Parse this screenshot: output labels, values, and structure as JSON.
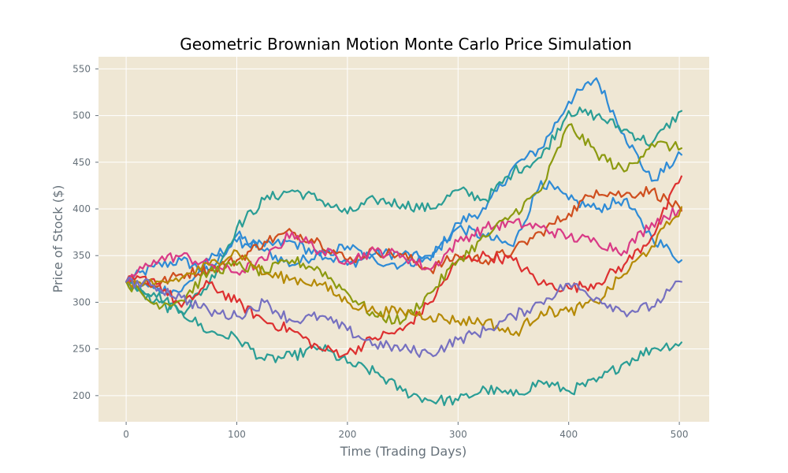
{
  "chart_data": {
    "type": "line",
    "title": "Geometric Brownian Motion Monte Carlo Price Simulation",
    "xlabel": "Time (Trading Days)",
    "ylabel": "Price of Stock ($)",
    "xlim": [
      -25,
      527
    ],
    "ylim": [
      172,
      563
    ],
    "x_ticks": [
      0,
      100,
      200,
      300,
      400,
      500
    ],
    "y_ticks": [
      200,
      250,
      300,
      350,
      400,
      450,
      500,
      550
    ],
    "x_tick_labels": [
      "0",
      "100",
      "200",
      "300",
      "400",
      "500"
    ],
    "y_tick_labels": [
      "200",
      "250",
      "300",
      "350",
      "400",
      "450",
      "500",
      "550"
    ],
    "grid": true,
    "plot_background": "#efe7d4",
    "x": [
      0,
      25,
      50,
      75,
      100,
      125,
      150,
      175,
      200,
      225,
      250,
      275,
      300,
      325,
      350,
      375,
      400,
      425,
      450,
      475,
      502
    ],
    "series": [
      {
        "color": "#2e8bd6",
        "values": [
          322,
          338,
          345,
          332,
          372,
          355,
          340,
          353,
          340,
          352,
          352,
          345,
          385,
          400,
          445,
          465,
          515,
          540,
          480,
          430,
          458
        ]
      },
      {
        "color": "#2e8bd6",
        "values": [
          322,
          315,
          312,
          345,
          365,
          360,
          365,
          350,
          360,
          345,
          340,
          350,
          380,
          370,
          360,
          430,
          410,
          400,
          410,
          370,
          345
        ]
      },
      {
        "color": "#2a9d95",
        "values": [
          322,
          310,
          290,
          320,
          380,
          410,
          420,
          410,
          395,
          410,
          405,
          400,
          420,
          410,
          440,
          455,
          505,
          500,
          485,
          470,
          505
        ]
      },
      {
        "color": "#2a9d95",
        "values": [
          322,
          300,
          290,
          268,
          262,
          238,
          242,
          252,
          235,
          225,
          205,
          195,
          195,
          207,
          200,
          215,
          205,
          215,
          235,
          250,
          257
        ]
      },
      {
        "color": "#cf4e1e",
        "values": [
          322,
          318,
          330,
          335,
          345,
          365,
          375,
          365,
          345,
          355,
          350,
          335,
          350,
          345,
          355,
          375,
          395,
          420,
          415,
          420,
          398
        ]
      },
      {
        "color": "#dd3030",
        "values": [
          322,
          325,
          295,
          320,
          300,
          280,
          270,
          250,
          245,
          262,
          270,
          300,
          345,
          350,
          345,
          320,
          315,
          320,
          340,
          370,
          435
        ]
      },
      {
        "color": "#d93a86",
        "values": [
          322,
          345,
          350,
          340,
          332,
          345,
          375,
          355,
          345,
          355,
          350,
          335,
          365,
          380,
          385,
          380,
          370,
          365,
          355,
          385,
          400
        ]
      },
      {
        "color": "#8c9a10",
        "values": [
          322,
          298,
          302,
          333,
          340,
          332,
          345,
          335,
          310,
          285,
          280,
          310,
          345,
          370,
          395,
          420,
          490,
          460,
          440,
          470,
          465
        ]
      },
      {
        "color": "#b58a06",
        "values": [
          322,
          318,
          326,
          340,
          355,
          330,
          325,
          320,
          300,
          290,
          290,
          285,
          280,
          280,
          265,
          290,
          290,
          300,
          330,
          360,
          402
        ]
      },
      {
        "color": "#7670c0",
        "values": [
          322,
          318,
          305,
          290,
          285,
          300,
          280,
          285,
          270,
          255,
          250,
          245,
          260,
          270,
          285,
          300,
          320,
          305,
          290,
          295,
          322
        ]
      }
    ]
  }
}
